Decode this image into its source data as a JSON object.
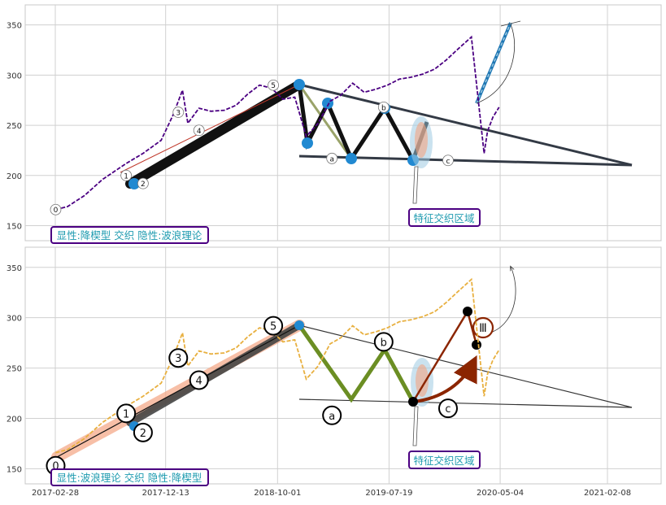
{
  "chart_data": [
    {
      "type": "line",
      "panel": "top",
      "ylim": [
        135,
        370
      ],
      "yticks": [
        150,
        200,
        250,
        300,
        350
      ],
      "grid": true,
      "series": [
        {
          "color": "#4b0082",
          "style": "dashed",
          "x": [
            "2017-03-01",
            "2017-04-01",
            "2017-05-15",
            "2017-07-01",
            "2017-09-01",
            "2017-10-15",
            "2017-12-01",
            "2018-01-01",
            "2018-01-26",
            "2018-02-09",
            "2018-03-10",
            "2018-04-10",
            "2018-05-15",
            "2018-06-15",
            "2018-07-15",
            "2018-08-15",
            "2018-09-15",
            "2018-10-15",
            "2018-11-15",
            "2018-12-15",
            "2019-01-15",
            "2019-02-15",
            "2019-03-15",
            "2019-04-15",
            "2019-05-15",
            "2019-06-15",
            "2019-07-15",
            "2019-08-15",
            "2019-09-15",
            "2019-10-15",
            "2019-11-15",
            "2019-12-15",
            "2020-01-15",
            "2020-02-19",
            "2020-03-23",
            "2020-04-01",
            "2020-04-15",
            "2020-05-01"
          ],
          "y": [
            166,
            169,
            180,
            196,
            212,
            222,
            235,
            260,
            285,
            252,
            267,
            264,
            265,
            270,
            281,
            290,
            287,
            276,
            278,
            239,
            252,
            274,
            280,
            292,
            283,
            286,
            290,
            296,
            298,
            301,
            306,
            315,
            326,
            338,
            222,
            244,
            258,
            268
          ]
        }
      ],
      "wave_points": [
        {
          "label": "0",
          "x": "2017-03-01",
          "y": 166
        },
        {
          "label": "1",
          "x": "2017-09-01",
          "y": 200
        },
        {
          "label": "2",
          "x": "2017-10-15",
          "y": 192
        },
        {
          "label": "3",
          "x": "2018-01-15",
          "y": 263
        },
        {
          "label": "4",
          "x": "2018-03-10",
          "y": 245
        },
        {
          "label": "5",
          "x": "2018-09-20",
          "y": 290
        },
        {
          "label": "a",
          "x": "2019-02-20",
          "y": 217
        },
        {
          "label": "b",
          "x": "2019-07-05",
          "y": 268
        },
        {
          "label": "c",
          "x": "2019-12-20",
          "y": 215
        }
      ],
      "annotation": "特征交织区域",
      "legend_text": "显性:降楔型 交织 隐性:波浪理论"
    },
    {
      "type": "line",
      "panel": "bottom",
      "ylim": [
        135,
        370
      ],
      "yticks": [
        150,
        200,
        250,
        300,
        350
      ],
      "xticks": [
        "2017-02-28",
        "2017-12-13",
        "2018-10-01",
        "2019-07-19",
        "2020-05-04",
        "2021-02-08"
      ],
      "grid": true,
      "series": [
        {
          "color": "#e8b040",
          "style": "dashed",
          "x": [
            "2017-03-01",
            "2017-04-01",
            "2017-05-15",
            "2017-07-01",
            "2017-09-01",
            "2017-10-15",
            "2017-12-01",
            "2018-01-01",
            "2018-01-26",
            "2018-02-09",
            "2018-03-10",
            "2018-04-10",
            "2018-05-15",
            "2018-06-15",
            "2018-07-15",
            "2018-08-15",
            "2018-09-15",
            "2018-10-15",
            "2018-11-15",
            "2018-12-15",
            "2019-01-15",
            "2019-02-15",
            "2019-03-15",
            "2019-04-15",
            "2019-05-15",
            "2019-06-15",
            "2019-07-15",
            "2019-08-15",
            "2019-09-15",
            "2019-10-15",
            "2019-11-15",
            "2019-12-15",
            "2020-01-15",
            "2020-02-19",
            "2020-03-23",
            "2020-04-01",
            "2020-04-15",
            "2020-05-01"
          ],
          "y": [
            166,
            169,
            180,
            196,
            212,
            222,
            235,
            260,
            285,
            252,
            267,
            264,
            265,
            270,
            281,
            290,
            287,
            276,
            278,
            239,
            252,
            274,
            280,
            292,
            283,
            286,
            290,
            296,
            298,
            301,
            306,
            315,
            326,
            338,
            222,
            244,
            258,
            268
          ]
        }
      ],
      "wave_points": [
        {
          "label": "0",
          "x": "2017-03-01",
          "y": 153
        },
        {
          "label": "1",
          "x": "2017-09-01",
          "y": 205
        },
        {
          "label": "2",
          "x": "2017-10-15",
          "y": 186
        },
        {
          "label": "3",
          "x": "2018-01-15",
          "y": 260
        },
        {
          "label": "4",
          "x": "2018-03-10",
          "y": 238
        },
        {
          "label": "5",
          "x": "2018-09-20",
          "y": 292
        },
        {
          "label": "a",
          "x": "2019-02-20",
          "y": 203
        },
        {
          "label": "b",
          "x": "2019-07-05",
          "y": 276
        },
        {
          "label": "c",
          "x": "2019-12-20",
          "y": 210
        }
      ],
      "roman_label": "Ⅲ",
      "annotation": "特征交织区域",
      "legend_text": "显性:波浪理论 交织 隐性:降楔型"
    }
  ]
}
